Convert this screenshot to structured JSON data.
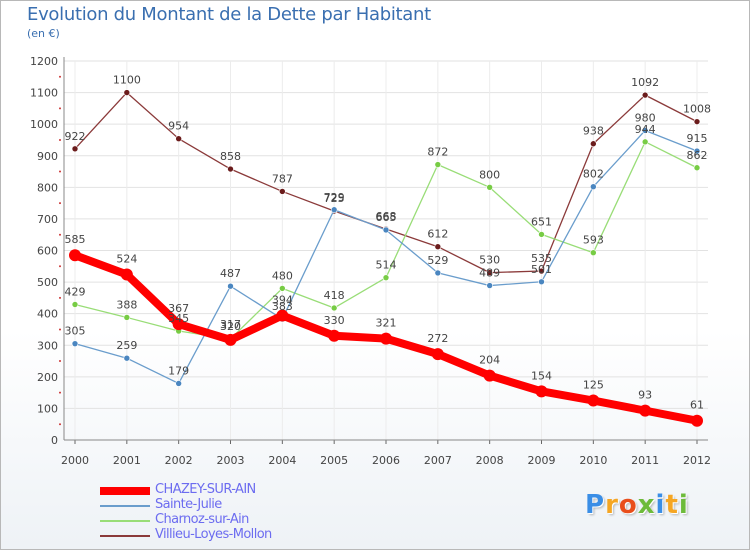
{
  "chart_data": {
    "type": "line",
    "title": "Evolution du Montant de la Dette par Habitant",
    "subtitle": "(en €)",
    "xlabel": "",
    "ylabel": "",
    "ylim": [
      0,
      1200
    ],
    "yticks": [
      0,
      100,
      200,
      300,
      400,
      500,
      600,
      700,
      800,
      900,
      1000,
      1100,
      1200
    ],
    "categories": [
      "2000",
      "2001",
      "2002",
      "2003",
      "2004",
      "2005",
      "2006",
      "2007",
      "2008",
      "2009",
      "2010",
      "2011",
      "2012"
    ],
    "series": [
      {
        "name": "CHAZEY-SUR-AIN",
        "color": "#ff0000",
        "marker": "#e00000",
        "values": [
          585,
          524,
          367,
          317,
          394,
          330,
          321,
          272,
          204,
          154,
          125,
          93,
          61
        ]
      },
      {
        "name": "Sainte-Julie",
        "color": "#6a9dcc",
        "marker": "#4a86c0",
        "values": [
          305,
          259,
          179,
          487,
          383,
          729,
          665,
          529,
          489,
          501,
          802,
          980,
          915
        ]
      },
      {
        "name": "Charnoz-sur-Ain",
        "color": "#99dd77",
        "marker": "#77cc44",
        "values": [
          429,
          388,
          345,
          320,
          480,
          418,
          514,
          872,
          800,
          651,
          593,
          944,
          862
        ]
      },
      {
        "name": "Villieu-Loyes-Mollon",
        "color": "#8b3a3a",
        "marker": "#6b1c1c",
        "values": [
          922,
          1100,
          954,
          858,
          787,
          725,
          668,
          612,
          530,
          535,
          938,
          1092,
          1008
        ]
      }
    ],
    "grid": true,
    "legend_position": "bottom-left"
  },
  "logo": {
    "letters": [
      "P",
      "r",
      "o",
      "x",
      "i",
      "t",
      "i"
    ],
    "colors": [
      "#3a8ee6",
      "#f5a623",
      "#e94e1b",
      "#6dbb3a",
      "#3a8ee6",
      "#f5a623",
      "#6dbb3a"
    ]
  }
}
